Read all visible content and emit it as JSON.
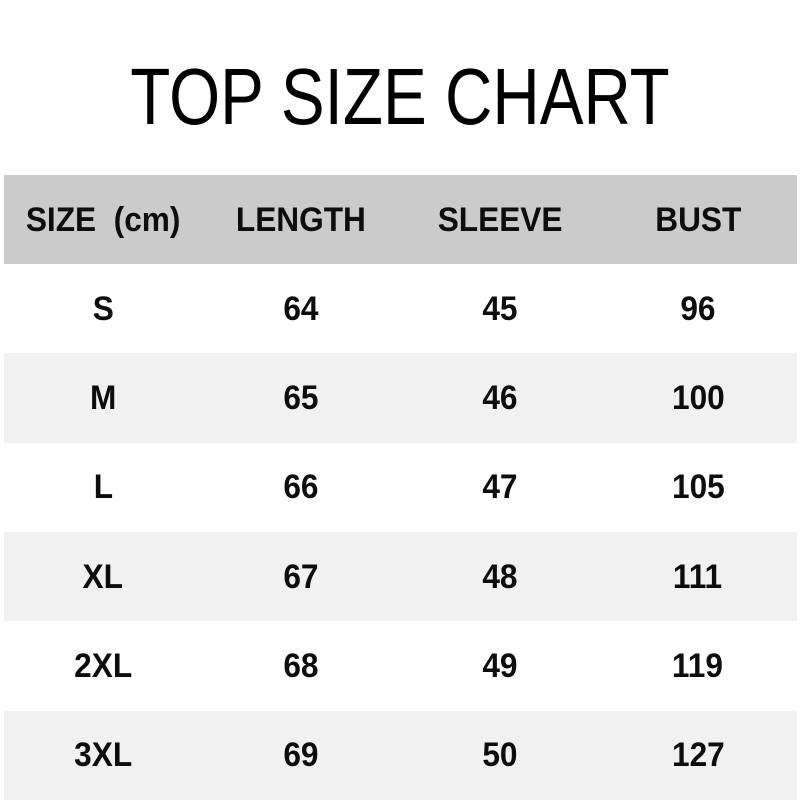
{
  "title": "TOP SIZE CHART",
  "table": {
    "headers": {
      "size": "SIZE  (cm)",
      "length": "LENGTH",
      "sleeve": "SLEEVE",
      "bust": "BUST"
    },
    "rows": [
      {
        "size": "S",
        "length": "64",
        "sleeve": "45",
        "bust": "96"
      },
      {
        "size": "M",
        "length": "65",
        "sleeve": "46",
        "bust": "100"
      },
      {
        "size": "L",
        "length": "66",
        "sleeve": "47",
        "bust": "105"
      },
      {
        "size": "XL",
        "length": "67",
        "sleeve": "48",
        "bust": "111"
      },
      {
        "size": "2XL",
        "length": "68",
        "sleeve": "49",
        "bust": "119"
      },
      {
        "size": "3XL",
        "length": "69",
        "sleeve": "50",
        "bust": "127"
      }
    ]
  },
  "colors": {
    "header_bg": "#cbcbcb",
    "stripe_bg": "#f1f1f1",
    "row_bg": "#ffffff",
    "text": "#0d0d0d",
    "title_text": "#000000"
  },
  "chart_data": {
    "type": "table",
    "title": "TOP SIZE CHART",
    "units": "cm",
    "columns": [
      "SIZE (cm)",
      "LENGTH",
      "SLEEVE",
      "BUST"
    ],
    "rows": [
      [
        "S",
        64,
        45,
        96
      ],
      [
        "M",
        65,
        46,
        100
      ],
      [
        "L",
        66,
        47,
        105
      ],
      [
        "XL",
        67,
        48,
        111
      ],
      [
        "2XL",
        68,
        49,
        119
      ],
      [
        "3XL",
        69,
        50,
        127
      ]
    ],
    "layout_hints": {
      "header_background": "#cbcbcb",
      "alternating_row_background": "#f1f1f1",
      "text_alignment": "center",
      "grid": "off"
    }
  }
}
